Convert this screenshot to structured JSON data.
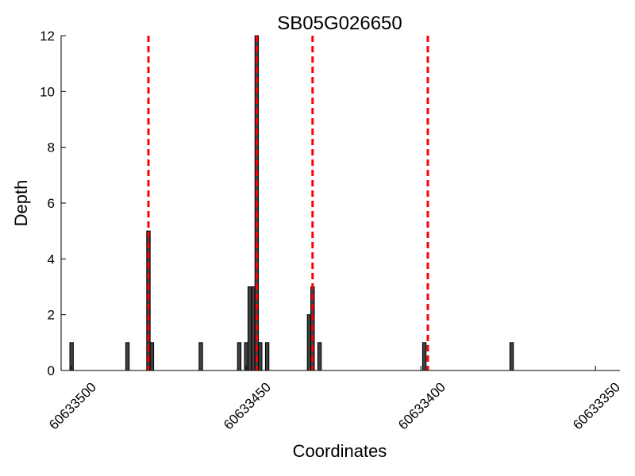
{
  "chart_data": {
    "type": "bar",
    "title": "SB05G026650",
    "xlabel": "Coordinates",
    "ylabel": "Depth",
    "x_reversed": true,
    "xlim": [
      60633503,
      60633343
    ],
    "ylim": [
      0,
      12
    ],
    "xticks": [
      "60633500",
      "60633450",
      "60633400",
      "60633350"
    ],
    "yticks": [
      "0",
      "2",
      "4",
      "6",
      "8",
      "10",
      "12"
    ],
    "grid": false,
    "bars": [
      {
        "x": 60633500,
        "depth": 1
      },
      {
        "x": 60633484,
        "depth": 1
      },
      {
        "x": 60633478,
        "depth": 5
      },
      {
        "x": 60633477,
        "depth": 1
      },
      {
        "x": 60633463,
        "depth": 1
      },
      {
        "x": 60633452,
        "depth": 1
      },
      {
        "x": 60633450,
        "depth": 1
      },
      {
        "x": 60633449,
        "depth": 3
      },
      {
        "x": 60633448,
        "depth": 3
      },
      {
        "x": 60633447,
        "depth": 12
      },
      {
        "x": 60633446,
        "depth": 1
      },
      {
        "x": 60633444,
        "depth": 1
      },
      {
        "x": 60633432,
        "depth": 2
      },
      {
        "x": 60633431,
        "depth": 3
      },
      {
        "x": 60633429,
        "depth": 1
      },
      {
        "x": 60633399,
        "depth": 1
      },
      {
        "x": 60633374,
        "depth": 1
      }
    ],
    "vlines": [
      60633478,
      60633447,
      60633431,
      60633398
    ],
    "bar_color": "#404040",
    "vline_color": "#ff0000"
  }
}
